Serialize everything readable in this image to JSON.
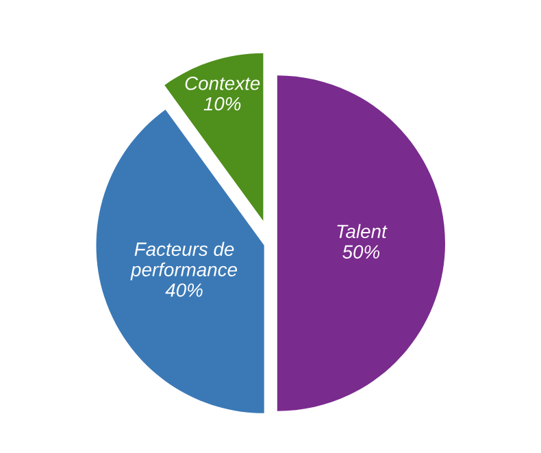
{
  "chart_data": {
    "type": "pie",
    "categories": [
      "Talent",
      "Facteurs de\nperformance",
      "Contexte"
    ],
    "values": [
      50,
      40,
      10
    ],
    "value_labels": [
      "50%",
      "40%",
      "10%"
    ],
    "colors": [
      "#7a2b8e",
      "#3b79b6",
      "#4f8f1c"
    ]
  }
}
